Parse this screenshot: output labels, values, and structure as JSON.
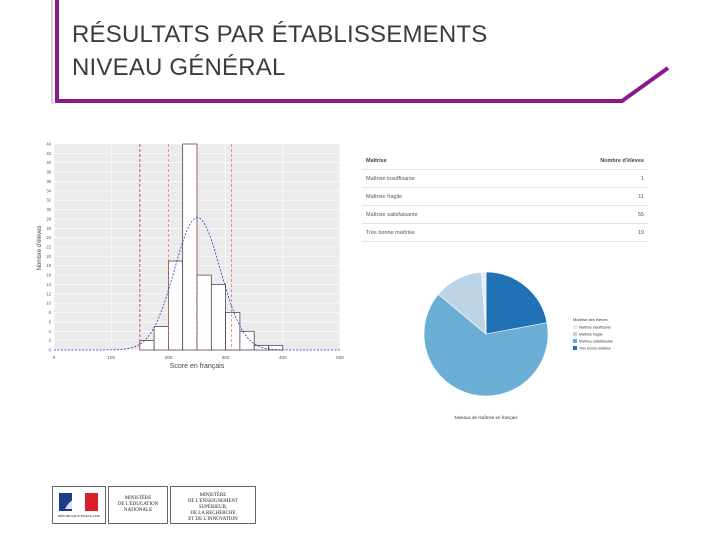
{
  "slide": {
    "title_line1": "RÉSULTATS PAR ÉTABLISSEMENTS",
    "title_line2": "NIVEAU GÉNÉRAL",
    "accent_color": "#8a1a8a"
  },
  "chart_data": [
    {
      "type": "bar",
      "subtype": "histogram",
      "xlabel": "Score en français",
      "ylabel": "Nombre d'élèves",
      "xlim": [
        0,
        500
      ],
      "ylim": [
        0,
        44
      ],
      "x_ticks": [
        "0",
        "100",
        "200",
        "300",
        "400",
        "500"
      ],
      "y_ticks": [
        "0",
        "2",
        "4",
        "6",
        "8",
        "10",
        "12",
        "14",
        "16",
        "18",
        "20",
        "22",
        "24",
        "26",
        "28",
        "30",
        "32",
        "34",
        "36",
        "38",
        "40",
        "42",
        "44"
      ],
      "bins": [
        {
          "x0": 150,
          "x1": 175,
          "value": 2
        },
        {
          "x0": 175,
          "x1": 200,
          "value": 5
        },
        {
          "x0": 200,
          "x1": 225,
          "value": 19
        },
        {
          "x0": 225,
          "x1": 250,
          "value": 44
        },
        {
          "x0": 250,
          "x1": 275,
          "value": 16
        },
        {
          "x0": 275,
          "x1": 300,
          "value": 14
        },
        {
          "x0": 300,
          "x1": 325,
          "value": 8
        },
        {
          "x0": 325,
          "x1": 350,
          "value": 4
        },
        {
          "x0": 350,
          "x1": 375,
          "value": 1
        },
        {
          "x0": 375,
          "x1": 400,
          "value": 1
        }
      ],
      "vertical_lines": [
        150,
        200,
        250,
        310
      ],
      "bar_color": "#ffffff",
      "curve_color": "#3333cc",
      "line_color": "#d9534f",
      "grid": true
    },
    {
      "type": "table",
      "columns": [
        "Maîtrise",
        "Nombre d'élèves"
      ],
      "rows": [
        [
          "Maîtrise insuffisante",
          "1"
        ],
        [
          "Maîtrise fragile",
          "11"
        ],
        [
          "Maîtrise satisfaisante",
          "55"
        ],
        [
          "Très bonne maîtrise",
          "19"
        ]
      ]
    },
    {
      "type": "pie",
      "title": "Niveaux de maîtrise en français",
      "legend_title": "Maîtrise des élèves",
      "legend_position": "right",
      "slices": [
        {
          "label": "Maîtrise insuffisante",
          "value": 1,
          "color": "#e3ecf5"
        },
        {
          "label": "Maîtrise fragile",
          "value": 11,
          "color": "#bcd4e6"
        },
        {
          "label": "Maîtrise satisfaisante",
          "value": 55,
          "color": "#6aaed6"
        },
        {
          "label": "Très bonne maîtrise",
          "value": 19,
          "color": "#2171b5"
        }
      ]
    }
  ],
  "footer": {
    "logo1_caption": "RÉPUBLIQUE FRANÇAISE",
    "logo2_text": "MINISTÈRE\nDE L'ÉDUCATION\nNATIONALE",
    "logo3_text": "MINISTÈRE\nDE L'ENSEIGNEMENT SUPÉRIEUR,\nDE LA RECHERCHE\nET DE L'INNOVATION"
  }
}
